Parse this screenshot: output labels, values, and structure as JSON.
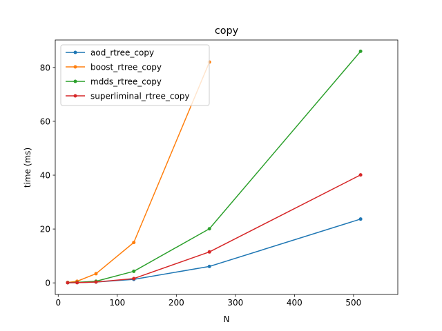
{
  "chart_data": {
    "type": "line",
    "title": "copy",
    "xlabel": "N",
    "ylabel": "time (ms)",
    "xlim": [
      -5,
      575
    ],
    "ylim": [
      -4.3,
      90.2
    ],
    "xticks": [
      0,
      100,
      200,
      300,
      400,
      500
    ],
    "yticks": [
      0,
      20,
      40,
      60,
      80
    ],
    "grid": false,
    "legend_position": "top-left",
    "series": [
      {
        "name": "aod_rtree_copy",
        "color": "#1f77b4",
        "x": [
          16,
          32,
          64,
          128,
          256,
          512
        ],
        "y": [
          0.05,
          0.1,
          0.3,
          1.3,
          6.1,
          23.7
        ]
      },
      {
        "name": "boost_rtree_copy",
        "color": "#ff7f0e",
        "x": [
          16,
          32,
          64,
          128,
          256
        ],
        "y": [
          0.15,
          0.6,
          3.4,
          15.0,
          82.0
        ]
      },
      {
        "name": "mdds_rtree_copy",
        "color": "#2ca02c",
        "x": [
          16,
          32,
          64,
          128,
          256,
          512
        ],
        "y": [
          0.1,
          0.2,
          0.6,
          4.3,
          20.1,
          86.0
        ]
      },
      {
        "name": "superliminal_rtree_copy",
        "color": "#d62728",
        "x": [
          16,
          32,
          64,
          128,
          256,
          512
        ],
        "y": [
          0.05,
          0.1,
          0.3,
          1.6,
          11.5,
          40.1
        ]
      }
    ]
  }
}
